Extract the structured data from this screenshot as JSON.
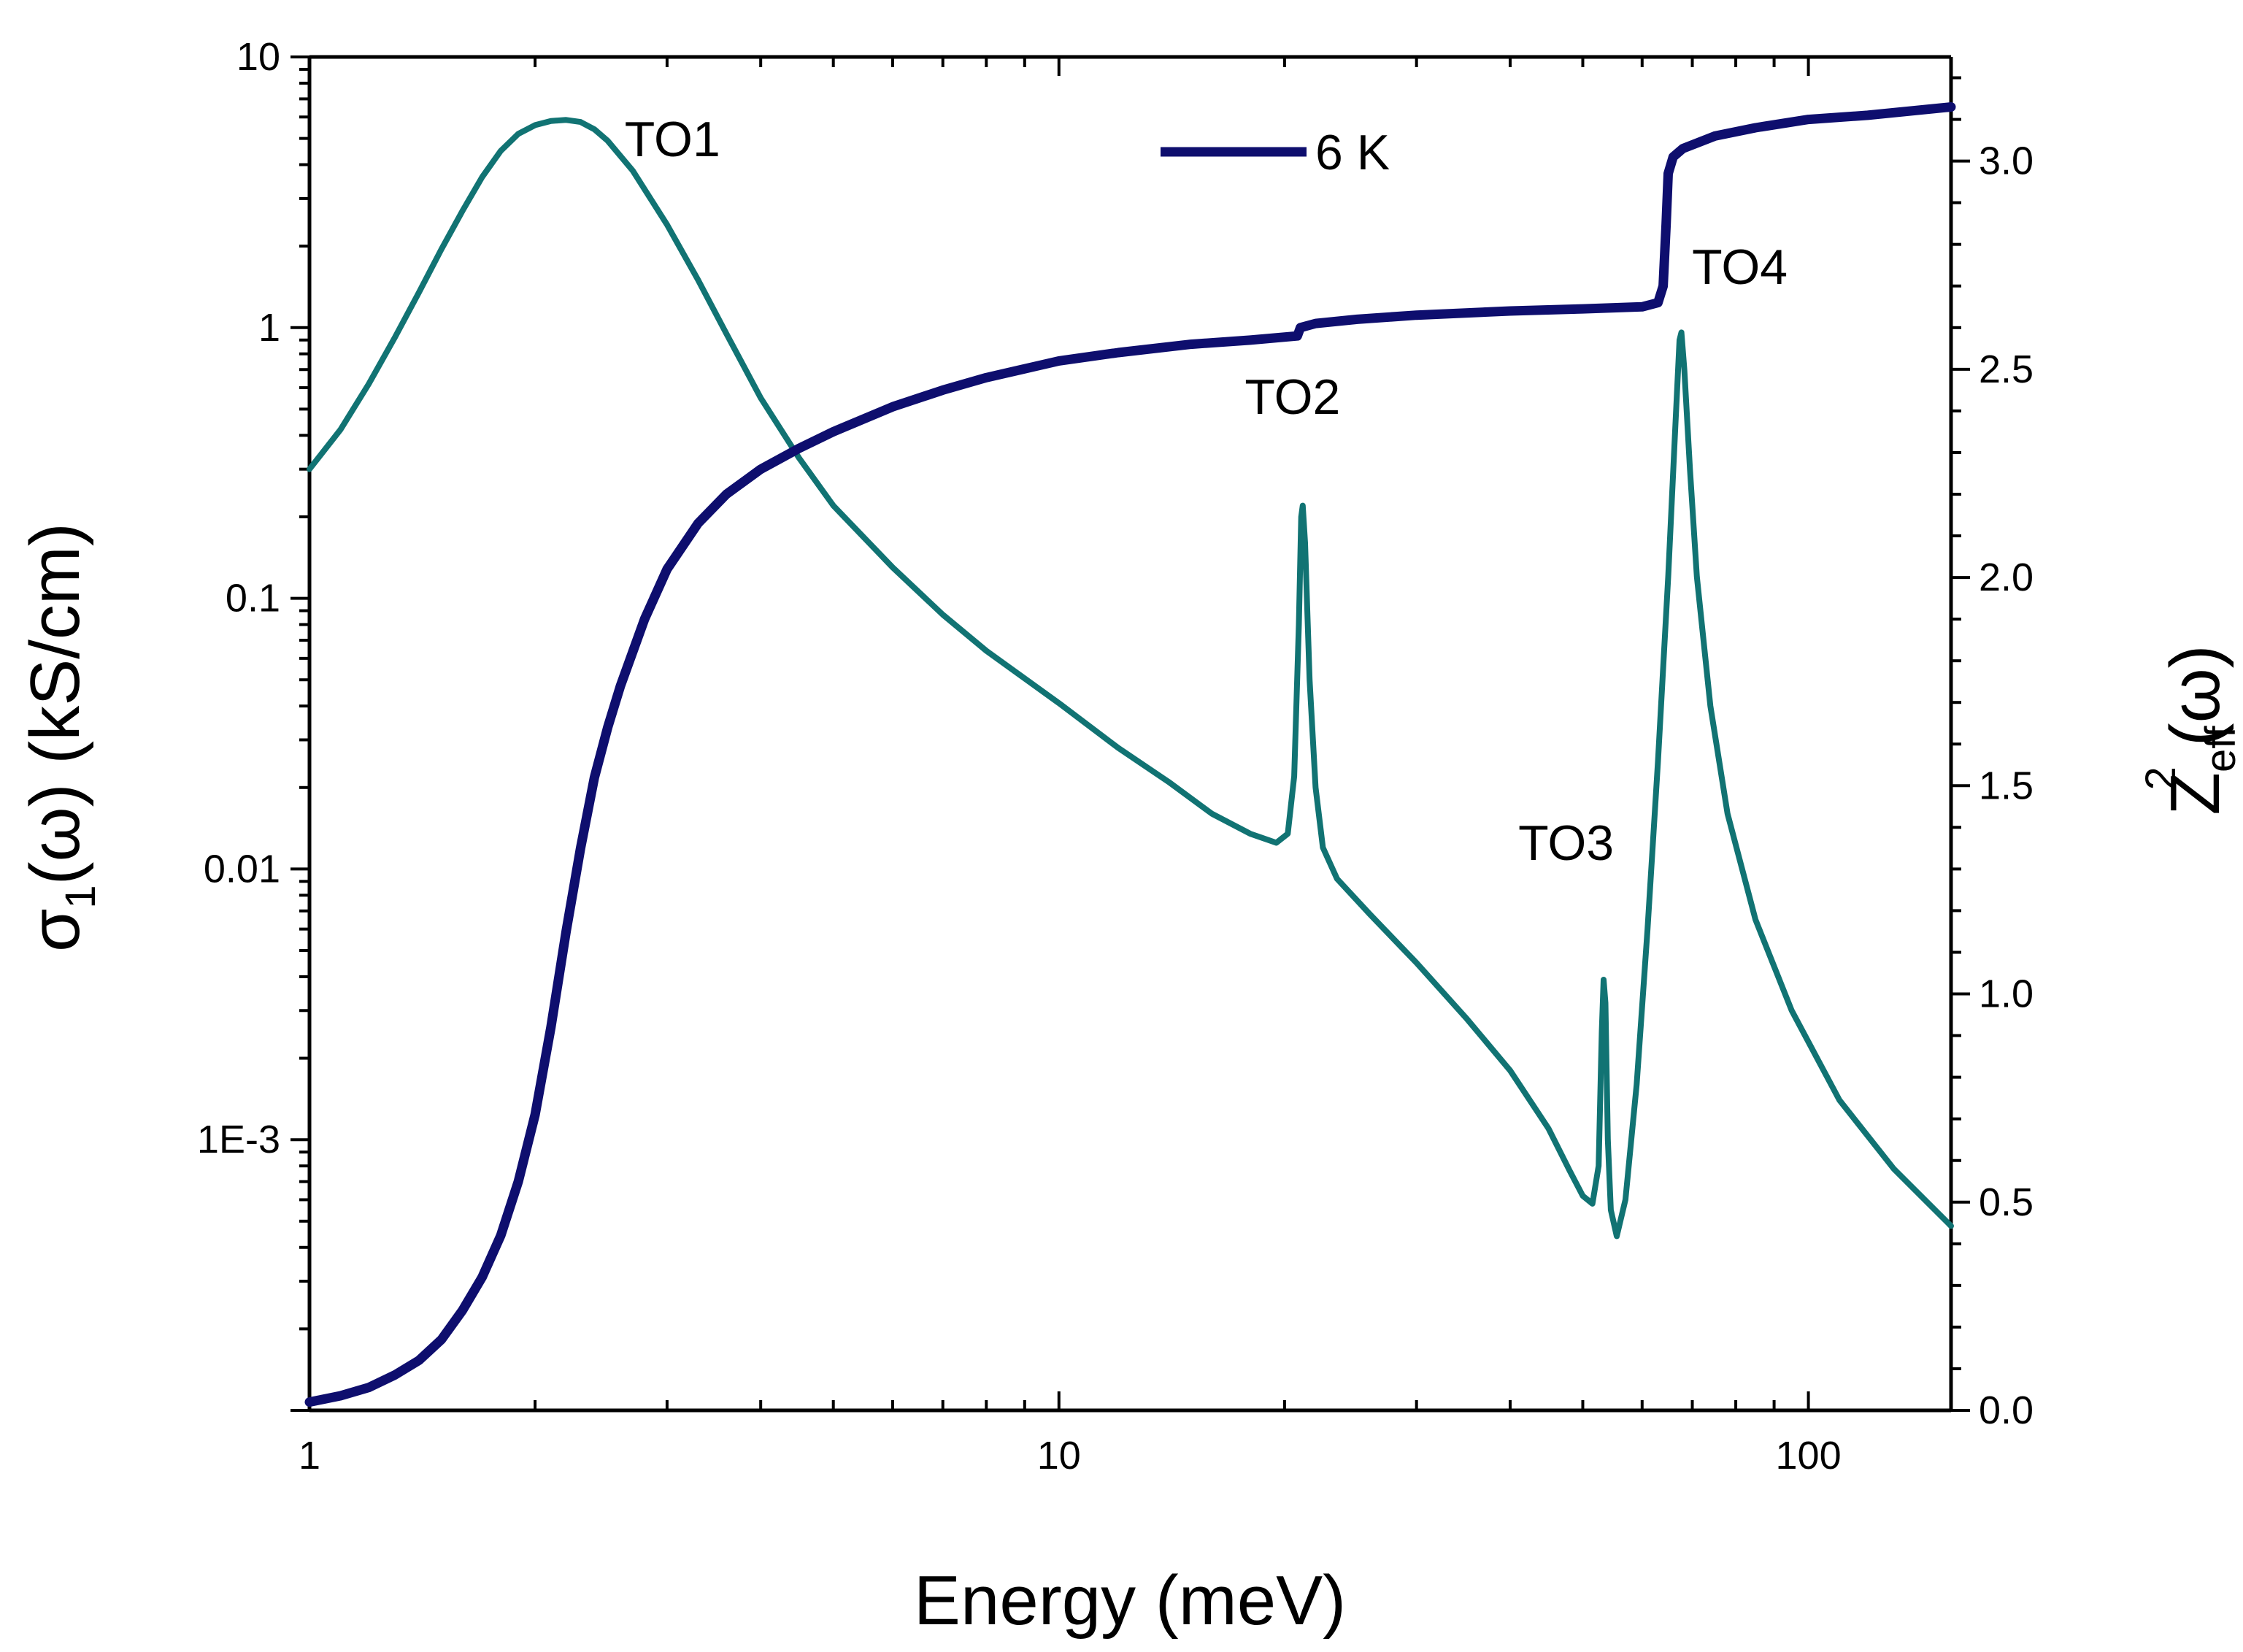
{
  "chart_data": {
    "type": "line",
    "x_scale": "log",
    "y_left_scale": "log",
    "xlabel": "Energy  (meV)",
    "xlim": [
      1,
      155
    ],
    "x_ticks": [
      {
        "value": 1,
        "label": "1"
      },
      {
        "value": 10,
        "label": "10"
      },
      {
        "value": 100,
        "label": "100"
      }
    ],
    "ylabel_left": {
      "sigma": "σ",
      "sub": "1",
      "rest": "(ω)   (kS/cm)"
    },
    "ylim_left": [
      0.0001,
      10
    ],
    "y_left_ticks": [
      {
        "value": 10,
        "label": "10"
      },
      {
        "value": 1,
        "label": "1"
      },
      {
        "value": 0.1,
        "label": "0.1"
      },
      {
        "value": 0.01,
        "label": "0.01"
      },
      {
        "value": 0.001,
        "label": "1E-3"
      }
    ],
    "ylabel_right": {
      "z": "Z",
      "sub": "eff",
      "sup": "2",
      "rest": "(ω)"
    },
    "ylim_right": [
      0,
      3.25
    ],
    "y_right_ticks": [
      {
        "value": 0.0,
        "label": "0.0"
      },
      {
        "value": 0.5,
        "label": "0.5"
      },
      {
        "value": 1.0,
        "label": "1.0"
      },
      {
        "value": 1.5,
        "label": "1.5"
      },
      {
        "value": 2.0,
        "label": "2.0"
      },
      {
        "value": 2.5,
        "label": "2.5"
      },
      {
        "value": 3.0,
        "label": "3.0"
      }
    ],
    "legend": {
      "position": "top-center",
      "entries": [
        {
          "label": "6 K",
          "series": "zeff"
        }
      ]
    },
    "annotations": [
      {
        "text": "TO1",
        "x": 3.05,
        "y": 4.3
      },
      {
        "text": "TO2",
        "x": 20.5,
        "y": 0.48
      },
      {
        "text": "TO3",
        "x": 47.5,
        "y": 0.0108
      },
      {
        "text": "TO4",
        "x": 81,
        "y": 1.45
      }
    ],
    "series": [
      {
        "name": "σ1(ω)",
        "axis": "left",
        "color": "#117373",
        "points": [
          [
            1.0,
            0.3
          ],
          [
            1.1,
            0.42
          ],
          [
            1.2,
            0.62
          ],
          [
            1.3,
            0.92
          ],
          [
            1.4,
            1.35
          ],
          [
            1.5,
            1.95
          ],
          [
            1.6,
            2.7
          ],
          [
            1.7,
            3.6
          ],
          [
            1.8,
            4.5
          ],
          [
            1.9,
            5.2
          ],
          [
            2.0,
            5.6
          ],
          [
            2.1,
            5.8
          ],
          [
            2.2,
            5.85
          ],
          [
            2.3,
            5.75
          ],
          [
            2.4,
            5.4
          ],
          [
            2.5,
            4.9
          ],
          [
            2.7,
            3.8
          ],
          [
            3.0,
            2.4
          ],
          [
            3.3,
            1.5
          ],
          [
            3.6,
            0.95
          ],
          [
            4.0,
            0.55
          ],
          [
            4.5,
            0.33
          ],
          [
            5.0,
            0.22
          ],
          [
            6.0,
            0.13
          ],
          [
            7.0,
            0.087
          ],
          [
            8.0,
            0.064
          ],
          [
            10.0,
            0.041
          ],
          [
            12.0,
            0.028
          ],
          [
            14.0,
            0.021
          ],
          [
            16.0,
            0.016
          ],
          [
            18.0,
            0.0135
          ],
          [
            19.5,
            0.0125
          ],
          [
            20.2,
            0.0135
          ],
          [
            20.6,
            0.022
          ],
          [
            20.9,
            0.08
          ],
          [
            21.05,
            0.2
          ],
          [
            21.15,
            0.22
          ],
          [
            21.3,
            0.16
          ],
          [
            21.6,
            0.05
          ],
          [
            22.0,
            0.02
          ],
          [
            22.5,
            0.012
          ],
          [
            23.5,
            0.0092
          ],
          [
            26.0,
            0.0068
          ],
          [
            30.0,
            0.0045
          ],
          [
            35.0,
            0.0028
          ],
          [
            40.0,
            0.0018
          ],
          [
            45.0,
            0.0011
          ],
          [
            48.0,
            0.00077
          ],
          [
            50.0,
            0.00062
          ],
          [
            51.5,
            0.00058
          ],
          [
            52.5,
            0.0008
          ],
          [
            53.0,
            0.0025
          ],
          [
            53.3,
            0.0039
          ],
          [
            53.6,
            0.0032
          ],
          [
            54.0,
            0.001
          ],
          [
            54.5,
            0.00055
          ],
          [
            55.5,
            0.00044
          ],
          [
            57.0,
            0.0006
          ],
          [
            59.0,
            0.0016
          ],
          [
            61.0,
            0.006
          ],
          [
            63.0,
            0.025
          ],
          [
            65.0,
            0.12
          ],
          [
            66.5,
            0.45
          ],
          [
            67.3,
            0.9
          ],
          [
            67.7,
            0.96
          ],
          [
            68.3,
            0.7
          ],
          [
            69.5,
            0.3
          ],
          [
            71.0,
            0.12
          ],
          [
            74.0,
            0.04
          ],
          [
            78.0,
            0.016
          ],
          [
            85.0,
            0.0065
          ],
          [
            95.0,
            0.003
          ],
          [
            110.0,
            0.0014
          ],
          [
            130.0,
            0.00078
          ],
          [
            155.0,
            0.00048
          ]
        ]
      },
      {
        "name": "6 K",
        "axis": "right",
        "color": "#0e0e6e",
        "points": [
          [
            1.0,
            0.02
          ],
          [
            1.1,
            0.035
          ],
          [
            1.2,
            0.055
          ],
          [
            1.3,
            0.085
          ],
          [
            1.4,
            0.12
          ],
          [
            1.5,
            0.17
          ],
          [
            1.6,
            0.24
          ],
          [
            1.7,
            0.32
          ],
          [
            1.8,
            0.42
          ],
          [
            1.9,
            0.55
          ],
          [
            2.0,
            0.71
          ],
          [
            2.1,
            0.92
          ],
          [
            2.2,
            1.15
          ],
          [
            2.3,
            1.35
          ],
          [
            2.4,
            1.52
          ],
          [
            2.5,
            1.64
          ],
          [
            2.6,
            1.74
          ],
          [
            2.8,
            1.9
          ],
          [
            3.0,
            2.02
          ],
          [
            3.3,
            2.13
          ],
          [
            3.6,
            2.2
          ],
          [
            4.0,
            2.26
          ],
          [
            4.5,
            2.31
          ],
          [
            5.0,
            2.35
          ],
          [
            6.0,
            2.41
          ],
          [
            7.0,
            2.45
          ],
          [
            8.0,
            2.48
          ],
          [
            10.0,
            2.52
          ],
          [
            12.0,
            2.54
          ],
          [
            15.0,
            2.56
          ],
          [
            18.0,
            2.57
          ],
          [
            20.8,
            2.58
          ],
          [
            21.0,
            2.6
          ],
          [
            22.0,
            2.61
          ],
          [
            25.0,
            2.62
          ],
          [
            30.0,
            2.63
          ],
          [
            40.0,
            2.64
          ],
          [
            50.0,
            2.645
          ],
          [
            60.0,
            2.65
          ],
          [
            63.0,
            2.66
          ],
          [
            64.0,
            2.7
          ],
          [
            64.6,
            2.85
          ],
          [
            65.0,
            2.97
          ],
          [
            66.0,
            3.01
          ],
          [
            68.0,
            3.03
          ],
          [
            75.0,
            3.06
          ],
          [
            85.0,
            3.08
          ],
          [
            100.0,
            3.1
          ],
          [
            120.0,
            3.11
          ],
          [
            155.0,
            3.13
          ]
        ]
      }
    ]
  }
}
